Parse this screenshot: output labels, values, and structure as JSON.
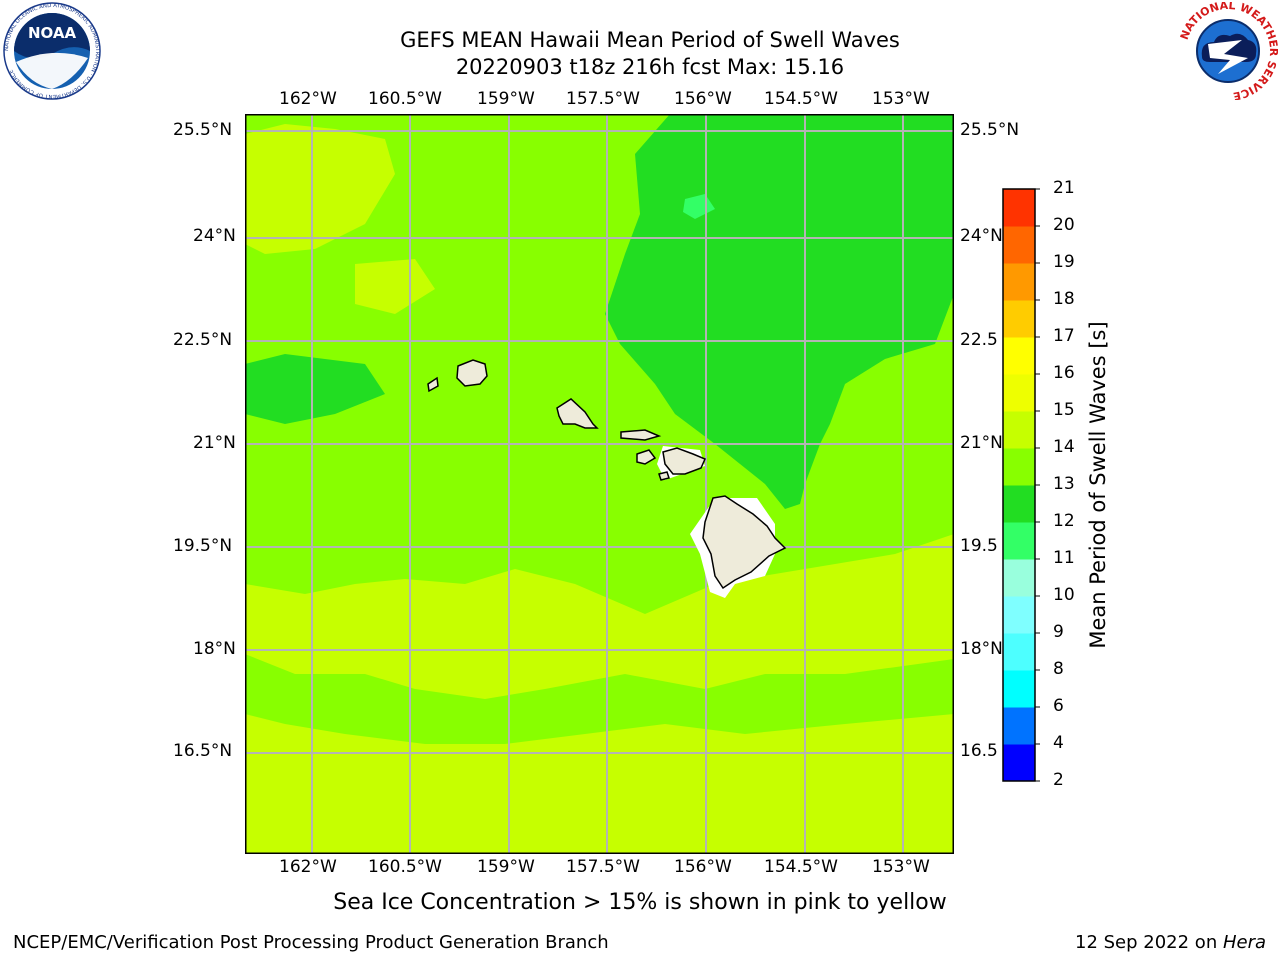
{
  "title": {
    "line1": "GEFS MEAN Hawaii Mean Period of Swell Waves",
    "line2": "20220903 t18z 216h fcst   Max: 15.16"
  },
  "lon_ticks": [
    "162°W",
    "160.5°W",
    "159°W",
    "157.5°W",
    "156°W",
    "154.5°W",
    "153°W"
  ],
  "lat_ticks": [
    "25.5°N",
    "24°N",
    "22.5°N",
    "21°N",
    "19.5°N",
    "18°N",
    "16.5°N"
  ],
  "lat_ticks_right": [
    "25.5°N",
    "24°N",
    "22.5",
    "21°N",
    "19.5",
    "18°N",
    "16.5"
  ],
  "colorbar": {
    "label": "Mean Period of Swell Waves [s]",
    "levels": [
      "2",
      "4",
      "6",
      "8",
      "9",
      "10",
      "11",
      "12",
      "13",
      "14",
      "15",
      "16",
      "17",
      "18",
      "19",
      "20",
      "21"
    ],
    "colors": [
      "#0000ff",
      "#0073ff",
      "#00ffff",
      "#4dffff",
      "#7fffff",
      "#99ffdd",
      "#33ff66",
      "#22dd22",
      "#88ff00",
      "#c6ff00",
      "#eeff00",
      "#ffff00",
      "#ffcc00",
      "#ff9900",
      "#ff6600",
      "#ff3300",
      "#ff0000"
    ]
  },
  "map": {
    "land_color": "#eeebda",
    "colors": {
      "green": "#22dd22",
      "lime": "#88ff00",
      "yellowgreen": "#c6ff00"
    }
  },
  "note": "Sea Ice Concentration > 15% is shown in pink to yellow",
  "footer": {
    "left": "NCEP/EMC/Verification Post Processing Product Generation Branch",
    "right_date": "12 Sep 2022 on ",
    "right_machine": "Hera"
  },
  "logos": {
    "noaa_text": "NOAA",
    "noaa_ring": "NATIONAL OCEANIC AND ATMOSPHERIC ADMINISTRATION · U.S. DEPARTMENT OF COMMERCE",
    "nws_ring": "NATIONAL WEATHER SERVICE"
  }
}
